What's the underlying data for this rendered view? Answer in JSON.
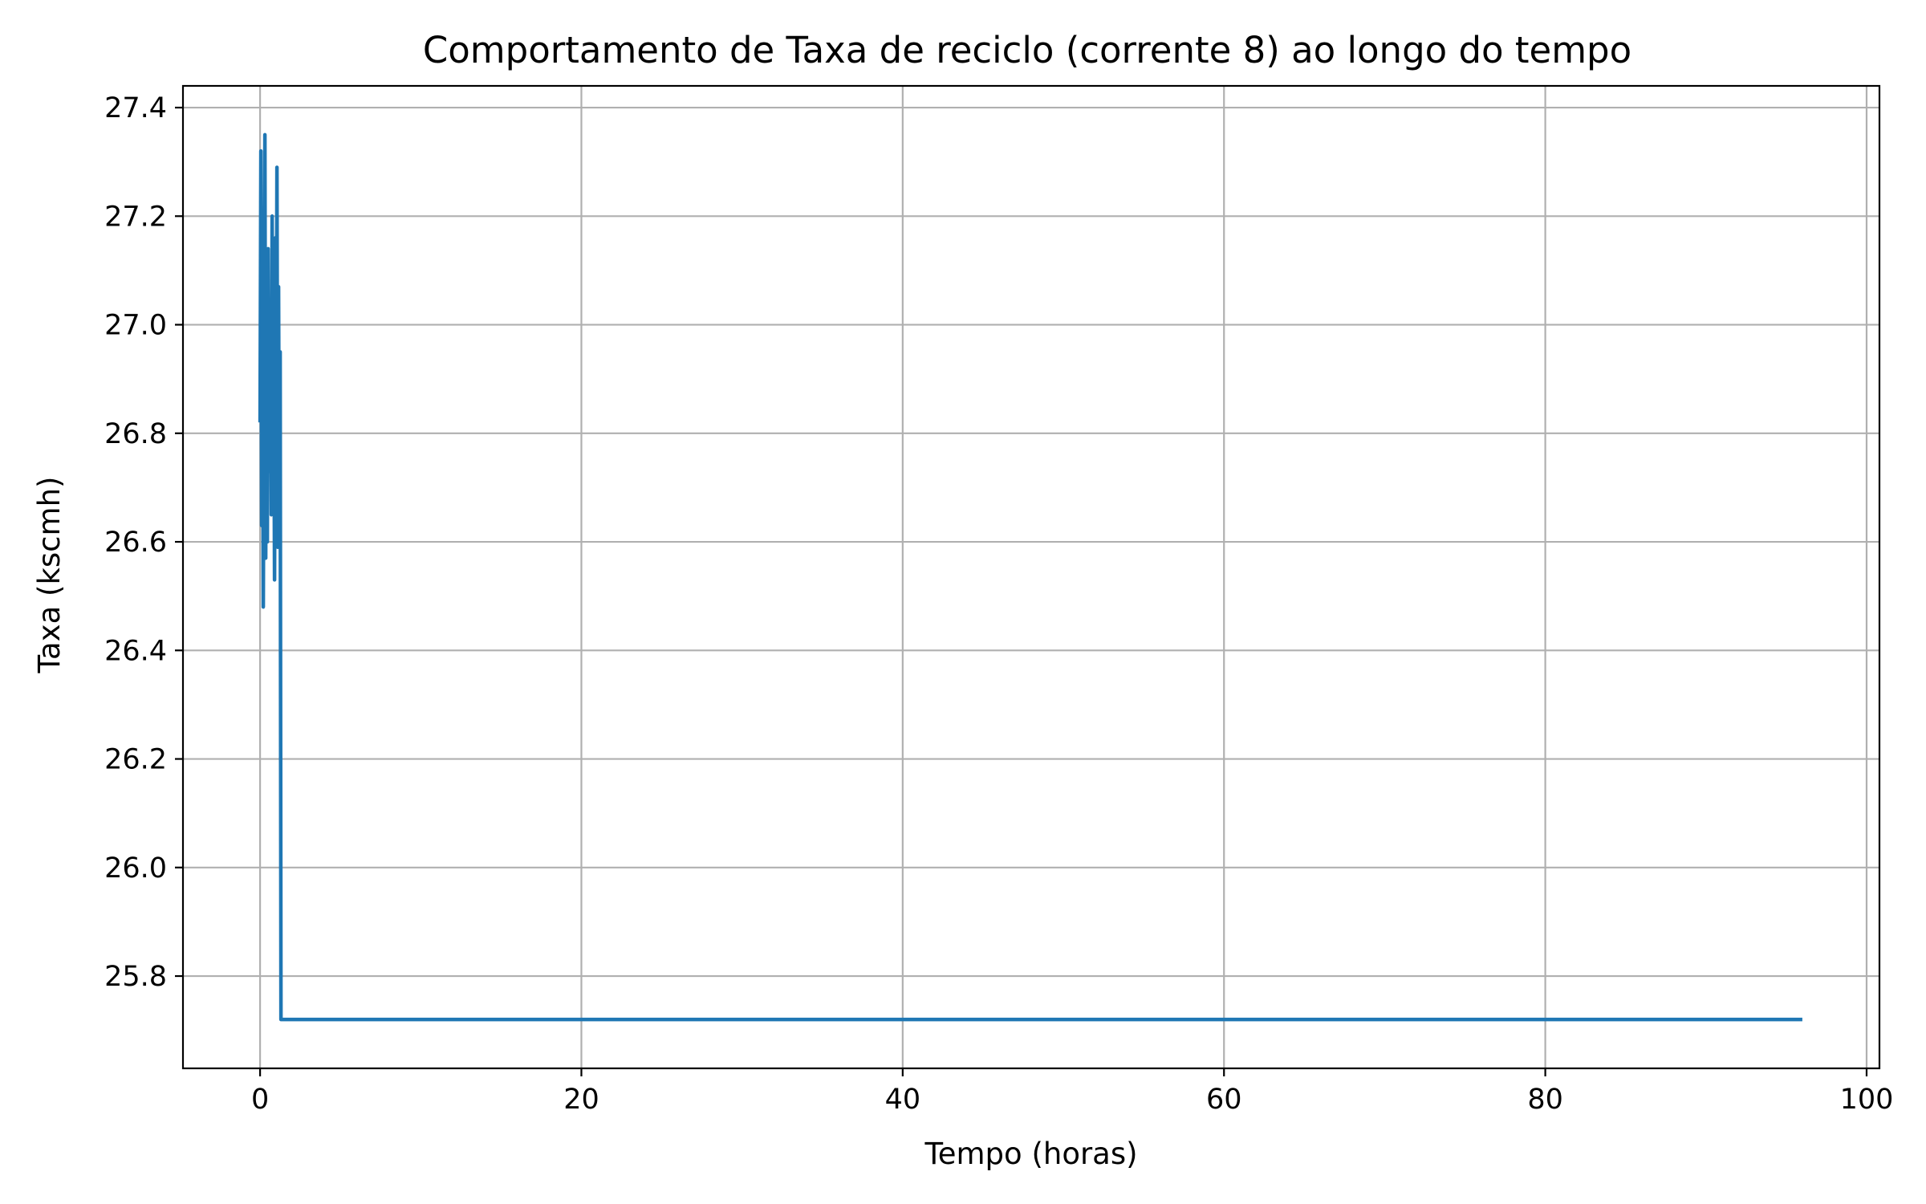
{
  "chart_data": {
    "type": "line",
    "title": "Comportamento de Taxa de reciclo (corrente 8) ao longo do tempo",
    "xlabel": "Tempo (horas)",
    "ylabel": "Taxa (kscmh)",
    "xlim": [
      -4.8,
      100.8
    ],
    "ylim": [
      25.63,
      27.44
    ],
    "x_ticks": [
      0,
      20,
      40,
      60,
      80,
      100
    ],
    "x_tick_labels": [
      "0",
      "20",
      "40",
      "60",
      "80",
      "100"
    ],
    "y_ticks": [
      25.8,
      26.0,
      26.2,
      26.4,
      26.6,
      26.8,
      27.0,
      27.2,
      27.4
    ],
    "y_tick_labels": [
      "25.8",
      "26.0",
      "26.2",
      "26.4",
      "26.6",
      "26.8",
      "27.0",
      "27.2",
      "27.4"
    ],
    "grid": true,
    "legend": "none",
    "series": [
      {
        "color": "#1f77b4",
        "x": [
          0.0,
          0.05,
          0.1,
          0.15,
          0.2,
          0.25,
          0.3,
          0.35,
          0.4,
          0.45,
          0.5,
          0.55,
          0.6,
          0.65,
          0.7,
          0.75,
          0.8,
          0.85,
          0.9,
          0.95,
          1.0,
          1.05,
          1.1,
          1.15,
          1.2,
          1.25,
          1.3,
          1.35,
          1.4,
          1.45,
          1.5,
          1.55,
          1.6,
          1.65,
          1.7,
          1.75,
          1.8,
          1.85,
          1.9,
          1.95,
          96.0
        ],
        "y": [
          26.82,
          27.32,
          26.63,
          27.05,
          26.48,
          26.95,
          27.35,
          26.57,
          27.1,
          26.6,
          27.14,
          26.73,
          26.9,
          27.02,
          26.65,
          27.2,
          26.67,
          27.0,
          26.53,
          27.16,
          26.72,
          27.29,
          26.59,
          27.07,
          26.62,
          26.95,
          25.72,
          25.72,
          25.72,
          25.72,
          25.72,
          25.72,
          25.72,
          25.72,
          25.72,
          25.72,
          25.72,
          25.72,
          25.72,
          25.72,
          25.72
        ]
      }
    ]
  }
}
